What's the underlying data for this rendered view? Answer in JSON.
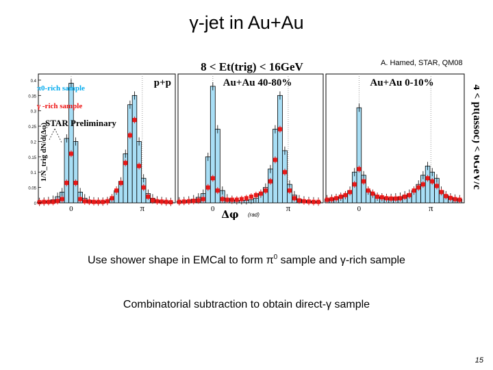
{
  "slide": {
    "title": "γ-jet in Au+Au",
    "credit": "A. Hamed, STAR, QM08",
    "caption1_pre": "Use shower shape in EMCal to form π",
    "caption1_sup": "0",
    "caption1_post": " sample and γ-rich sample",
    "caption2": "Combinatorial subtraction to obtain direct-γ sample",
    "page_number": "15"
  },
  "chart_data": {
    "type": "bar",
    "title": "8 < Et(trig) < 16GeV",
    "side_label": "4 < pt(assoc) < 6GeV/c",
    "ylabel": "1/N_trig dN/d(Δφ)",
    "xlabel": "Δφ",
    "xlabel_unit": "(rad)",
    "preliminary": "STAR Preliminary",
    "legend": [
      {
        "label": "π0-rich sample",
        "color": "#00aaee"
      },
      {
        "label": "γ -rich sample",
        "color": "#ee1111"
      }
    ],
    "y_ticks": [
      "0",
      "0.05",
      "0.1",
      "0.15",
      "0.2",
      "0.25",
      "0.3",
      "0.35",
      "0.4"
    ],
    "x_ticks": [
      "0",
      "π"
    ],
    "ylim": [
      0,
      0.42
    ],
    "xlim": [
      -1.45,
      4.6
    ],
    "colors": {
      "pi0_fill": "#a8def5",
      "pi0_edge": "#000000",
      "gamma": "#e81818"
    },
    "panels": [
      {
        "label": "p+p",
        "x": [
          -1.4,
          -1.2,
          -1.0,
          -0.8,
          -0.6,
          -0.4,
          -0.2,
          0.0,
          0.2,
          0.4,
          0.6,
          0.8,
          1.0,
          1.2,
          1.4,
          1.6,
          1.8,
          2.0,
          2.2,
          2.4,
          2.6,
          2.8,
          3.0,
          3.2,
          3.4,
          3.6,
          3.8,
          4.0,
          4.2,
          4.4
        ],
        "pi0": [
          0.003,
          0.004,
          0.006,
          0.01,
          0.02,
          0.035,
          0.21,
          0.39,
          0.2,
          0.035,
          0.015,
          0.008,
          0.005,
          0.004,
          0.004,
          0.006,
          0.015,
          0.04,
          0.07,
          0.16,
          0.32,
          0.35,
          0.2,
          0.08,
          0.03,
          0.015,
          0.008,
          0.006,
          0.004,
          0.003
        ],
        "gamma": [
          0.002,
          0.003,
          0.003,
          0.003,
          0.006,
          0.012,
          0.065,
          0.16,
          0.065,
          0.012,
          0.005,
          0.004,
          0.003,
          0.003,
          0.003,
          0.005,
          0.015,
          0.04,
          0.065,
          0.13,
          0.22,
          0.27,
          0.12,
          0.05,
          0.02,
          0.008,
          0.005,
          0.004,
          0.003,
          0.002
        ]
      },
      {
        "label": "Au+Au 40-80%",
        "x": [
          -1.4,
          -1.2,
          -1.0,
          -0.8,
          -0.6,
          -0.4,
          -0.2,
          0.0,
          0.2,
          0.4,
          0.6,
          0.8,
          1.0,
          1.2,
          1.4,
          1.6,
          1.8,
          2.0,
          2.2,
          2.4,
          2.6,
          2.8,
          3.0,
          3.2,
          3.4,
          3.6,
          3.8,
          4.0,
          4.2,
          4.4
        ],
        "pi0": [
          0.005,
          0.006,
          0.008,
          0.012,
          0.018,
          0.03,
          0.15,
          0.38,
          0.24,
          0.04,
          0.015,
          0.01,
          0.008,
          0.008,
          0.008,
          0.01,
          0.015,
          0.03,
          0.05,
          0.11,
          0.24,
          0.35,
          0.17,
          0.06,
          0.025,
          0.012,
          0.008,
          0.006,
          0.005,
          0.004
        ],
        "gamma": [
          0.003,
          0.004,
          0.005,
          0.006,
          0.008,
          0.012,
          0.05,
          0.08,
          0.04,
          0.012,
          0.01,
          0.01,
          0.01,
          0.012,
          0.015,
          0.02,
          0.025,
          0.03,
          0.04,
          0.07,
          0.14,
          0.24,
          0.1,
          0.04,
          0.015,
          0.008,
          0.005,
          0.004,
          0.003,
          0.003
        ]
      },
      {
        "label": "Au+Au 0-10%",
        "x": [
          -1.4,
          -1.2,
          -1.0,
          -0.8,
          -0.6,
          -0.4,
          -0.2,
          0.0,
          0.2,
          0.4,
          0.6,
          0.8,
          1.0,
          1.2,
          1.4,
          1.6,
          1.8,
          2.0,
          2.2,
          2.4,
          2.6,
          2.8,
          3.0,
          3.2,
          3.4,
          3.6,
          3.8,
          4.0,
          4.2,
          4.4
        ],
        "pi0": [
          0.012,
          0.014,
          0.016,
          0.02,
          0.025,
          0.04,
          0.1,
          0.31,
          0.09,
          0.04,
          0.03,
          0.02,
          0.018,
          0.016,
          0.016,
          0.018,
          0.02,
          0.025,
          0.03,
          0.04,
          0.06,
          0.09,
          0.12,
          0.1,
          0.08,
          0.04,
          0.025,
          0.018,
          0.014,
          0.012
        ],
        "gamma": [
          0.01,
          0.012,
          0.015,
          0.02,
          0.025,
          0.035,
          0.06,
          0.11,
          0.07,
          0.04,
          0.03,
          0.02,
          0.018,
          0.015,
          0.014,
          0.014,
          0.015,
          0.02,
          0.025,
          0.04,
          0.05,
          0.06,
          0.08,
          0.07,
          0.055,
          0.035,
          0.022,
          0.016,
          0.012,
          0.01
        ]
      }
    ]
  }
}
